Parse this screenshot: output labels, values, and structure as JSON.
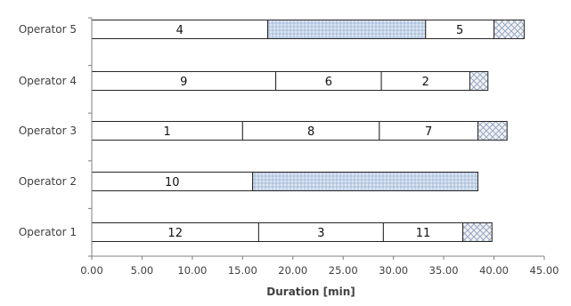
{
  "chart_data": {
    "type": "bar",
    "orientation": "horizontal",
    "stacked": true,
    "title": "",
    "xlabel": "Duration [min]",
    "ylabel": "",
    "xlim": [
      0,
      45
    ],
    "xticks": [
      "0.00",
      "5.00",
      "10.00",
      "15.00",
      "20.00",
      "25.00",
      "30.00",
      "35.00",
      "40.00",
      "45.00"
    ],
    "grid": false,
    "legend": "none",
    "colors": {
      "job_fill": "#ffffff",
      "idle_fill": "#dce6f2",
      "idle_hatch": "#9bb3d4",
      "end_fill": "#f2f2f2",
      "end_hatch": "#8ca0c0",
      "outline": "#262626",
      "axis": "#7f7f7f"
    },
    "rows": [
      {
        "label": "Operator 5",
        "segments": [
          {
            "start": 0,
            "end": 17.5,
            "kind": "job",
            "label": "4"
          },
          {
            "start": 17.5,
            "end": 33.2,
            "kind": "idle",
            "label": ""
          },
          {
            "start": 33.2,
            "end": 40.0,
            "kind": "job",
            "label": "5"
          },
          {
            "start": 40.0,
            "end": 43.0,
            "kind": "end",
            "label": ""
          }
        ]
      },
      {
        "label": "Operator 4",
        "segments": [
          {
            "start": 0,
            "end": 18.3,
            "kind": "job",
            "label": "9"
          },
          {
            "start": 18.3,
            "end": 28.8,
            "kind": "job",
            "label": "6"
          },
          {
            "start": 28.8,
            "end": 37.6,
            "kind": "job",
            "label": "2"
          },
          {
            "start": 37.6,
            "end": 39.4,
            "kind": "end",
            "label": ""
          }
        ]
      },
      {
        "label": "Operator 3",
        "segments": [
          {
            "start": 0,
            "end": 15.0,
            "kind": "job",
            "label": "1"
          },
          {
            "start": 15.0,
            "end": 28.6,
            "kind": "job",
            "label": "8"
          },
          {
            "start": 28.6,
            "end": 38.4,
            "kind": "job",
            "label": "7"
          },
          {
            "start": 38.4,
            "end": 41.3,
            "kind": "end",
            "label": ""
          }
        ]
      },
      {
        "label": "Operator 2",
        "segments": [
          {
            "start": 0,
            "end": 16.0,
            "kind": "job",
            "label": "10"
          },
          {
            "start": 16.0,
            "end": 38.4,
            "kind": "idle",
            "label": ""
          }
        ]
      },
      {
        "label": "Operator 1",
        "segments": [
          {
            "start": 0,
            "end": 16.6,
            "kind": "job",
            "label": "12"
          },
          {
            "start": 16.6,
            "end": 29.0,
            "kind": "job",
            "label": "3"
          },
          {
            "start": 29.0,
            "end": 36.9,
            "kind": "job",
            "label": "11"
          },
          {
            "start": 36.9,
            "end": 39.8,
            "kind": "end",
            "label": ""
          }
        ]
      }
    ]
  }
}
